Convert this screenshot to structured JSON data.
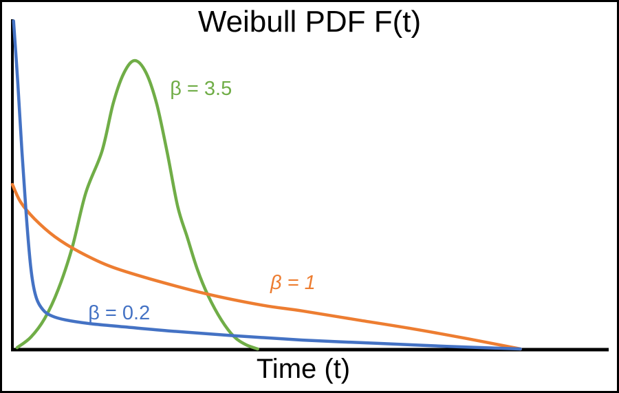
{
  "chart_data": {
    "type": "line",
    "title": "Weibull PDF F(t)",
    "xlabel": "Time (t)",
    "ylabel": "",
    "background": "#ffffff",
    "axis_color": "#000000",
    "border_color": "#000000",
    "grid": false,
    "tick_labels": "none",
    "legend": "inline-curve-labels",
    "coords_note": "series points are normalized plot coordinates: x 0=origin to 1=x-axis end, y 0=baseline to 1=y-axis top",
    "series": [
      {
        "name": "weibull-beta-3.5",
        "beta": 3.5,
        "label": "β = 3.5",
        "label_italic": false,
        "color": "#70AD47",
        "label_anchor": [
          0.264,
          0.771
        ],
        "points": [
          [
            0.008,
            0.006
          ],
          [
            0.031,
            0.038
          ],
          [
            0.054,
            0.094
          ],
          [
            0.077,
            0.183
          ],
          [
            0.1,
            0.308
          ],
          [
            0.123,
            0.475
          ],
          [
            0.15,
            0.6
          ],
          [
            0.169,
            0.746
          ],
          [
            0.187,
            0.838
          ],
          [
            0.205,
            0.875
          ],
          [
            0.224,
            0.838
          ],
          [
            0.242,
            0.742
          ],
          [
            0.259,
            0.6
          ],
          [
            0.277,
            0.433
          ],
          [
            0.293,
            0.34
          ],
          [
            0.31,
            0.242
          ],
          [
            0.328,
            0.163
          ],
          [
            0.35,
            0.09
          ],
          [
            0.371,
            0.04
          ],
          [
            0.391,
            0.015
          ],
          [
            0.411,
            0.002
          ]
        ]
      },
      {
        "name": "weibull-beta-1",
        "beta": 1,
        "label": "β = 1",
        "label_italic": true,
        "color": "#ED7D31",
        "label_anchor": [
          0.432,
          0.183
        ],
        "points": [
          [
            0.0,
            0.5
          ],
          [
            0.014,
            0.446
          ],
          [
            0.037,
            0.396
          ],
          [
            0.071,
            0.342
          ],
          [
            0.112,
            0.296
          ],
          [
            0.164,
            0.252
          ],
          [
            0.233,
            0.213
          ],
          [
            0.325,
            0.169
          ],
          [
            0.417,
            0.135
          ],
          [
            0.486,
            0.117
          ],
          [
            0.578,
            0.09
          ],
          [
            0.671,
            0.063
          ],
          [
            0.763,
            0.033
          ],
          [
            0.851,
            0.002
          ]
        ]
      },
      {
        "name": "weibull-beta-0.2",
        "beta": 0.2,
        "label": "β = 0.2",
        "label_italic": false,
        "color": "#4472C4",
        "label_anchor": [
          0.127,
          0.092
        ],
        "points": [
          [
            0.002,
            0.995
          ],
          [
            0.009,
            0.81
          ],
          [
            0.016,
            0.6
          ],
          [
            0.023,
            0.413
          ],
          [
            0.031,
            0.246
          ],
          [
            0.039,
            0.163
          ],
          [
            0.051,
            0.121
          ],
          [
            0.066,
            0.102
          ],
          [
            0.089,
            0.09
          ],
          [
            0.129,
            0.079
          ],
          [
            0.187,
            0.069
          ],
          [
            0.267,
            0.056
          ],
          [
            0.371,
            0.042
          ],
          [
            0.486,
            0.029
          ],
          [
            0.613,
            0.019
          ],
          [
            0.728,
            0.01
          ],
          [
            0.851,
            0.002
          ]
        ]
      }
    ]
  }
}
